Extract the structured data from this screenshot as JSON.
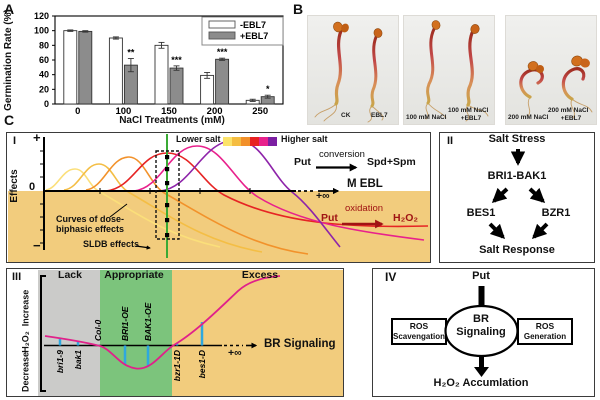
{
  "panels": {
    "a": "A",
    "b": "B",
    "c": "C"
  },
  "chart_data": {
    "type": "bar",
    "title": "",
    "xlabel": "NaCl Treatments (mM)",
    "ylabel": "Germination Rate (%)",
    "ylim": [
      0,
      120
    ],
    "yticks": [
      0,
      20,
      40,
      60,
      80,
      100,
      120
    ],
    "categories": [
      "0",
      "100",
      "150",
      "200",
      "250"
    ],
    "series": [
      {
        "name": "-EBL7",
        "fill": "#ffffff",
        "values": [
          100,
          90,
          80,
          39,
          5
        ],
        "errors": [
          1,
          1.5,
          4,
          4,
          1.5
        ]
      },
      {
        "name": "+EBL7",
        "fill": "#8c8c8c",
        "values": [
          99,
          53,
          49,
          61,
          10
        ],
        "errors": [
          1,
          9,
          3,
          1.5,
          2
        ]
      }
    ],
    "significance": [
      "",
      "**",
      "***",
      "***",
      "*"
    ],
    "legend_position": "top-right",
    "grid": false
  },
  "panel_b": {
    "photos": [
      {
        "left": "CK",
        "right1": "EBL7",
        "right2": ""
      },
      {
        "left": "100 mM NaCl",
        "right1": "100 mM NaCl",
        "right2": "+EBL7"
      },
      {
        "left": "200 mM NaCl",
        "right1": "200 mM NaCl",
        "right2": "+EBL7"
      }
    ]
  },
  "panel_c": {
    "sub_i": {
      "label": "I",
      "plus": "+",
      "zero": "0",
      "minus": "−",
      "y_axis_label": "Effects",
      "legend_lower": "Lower salt",
      "legend_higher": "Higher salt",
      "legend_colors": [
        "#FCE36B",
        "#F5BD41",
        "#F2902A",
        "#E82121",
        "#E8218C",
        "#7B1FA2"
      ],
      "conversion_from": "Put",
      "conversion_label": "conversion",
      "conversion_to": "Spd+Spm",
      "oxidation_from": "Put",
      "oxidation_label": "oxidation",
      "oxidation_to": "H₂O₂",
      "x_end_label": "M EBL",
      "x_infinity": "+∞",
      "note_curves_1": "Curves of dose-",
      "note_curves_2": "biphasic effects",
      "note_sldb": "SLDB effects"
    },
    "sub_ii": {
      "label": "II",
      "nodes": [
        "Salt Stress",
        "BRI1-BAK1",
        "BES1",
        "BZR1",
        "Salt Response"
      ]
    },
    "sub_iii": {
      "label": "III",
      "zones": [
        "Lack",
        "Appropriate",
        "Excess"
      ],
      "y_top": "Increase",
      "y_mid": "H₂O₂",
      "y_bottom": "Decrease",
      "x_axis_label": "BR Signaling",
      "x_infinity": "+∞",
      "genotypes": [
        {
          "name": "bri1-9",
          "label_side": "below"
        },
        {
          "name": "bak1",
          "label_side": "below"
        },
        {
          "name": "Col-0",
          "label_side": "above"
        },
        {
          "name": "BRI1-OE",
          "label_side": "above"
        },
        {
          "name": "BAK1-OE",
          "label_side": "above"
        },
        {
          "name": "bzr1-1D",
          "label_side": "below"
        },
        {
          "name": "bes1-D",
          "label_side": "below"
        }
      ]
    },
    "sub_iv": {
      "label": "IV",
      "top": "Put",
      "center_line1": "BR",
      "center_line2": "Signaling",
      "left_box_line1": "ROS",
      "left_box_line2": "Scavengation",
      "right_box_line1": "ROS",
      "right_box_line2": "Generation",
      "bottom": "H₂O₂ Accumlation"
    }
  },
  "colors": {
    "tan": "#F2CC7D",
    "zone_gray": "#CBCBC9",
    "zone_green": "#7CC47C",
    "bar_gray": "#8C8C8C",
    "marker_blue": "#2EA8DF",
    "curve_pink": "#E0218A",
    "sldb_green": "#3AAA35",
    "oxidation_red": "#A01414"
  }
}
